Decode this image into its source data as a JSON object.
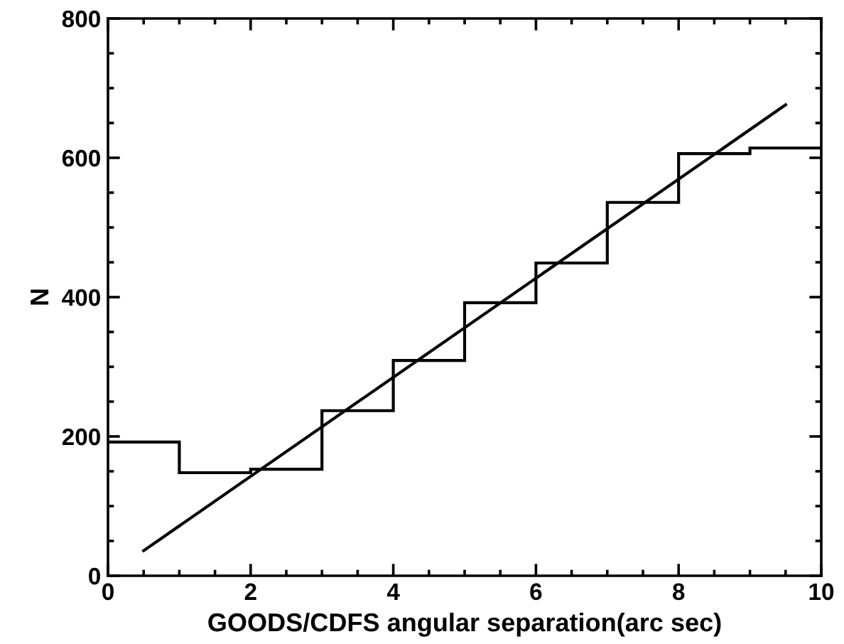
{
  "chart_data": {
    "type": "histogram",
    "xlabel": "GOODS/CDFS angular separation(arc sec)",
    "ylabel": "N",
    "xlim": [
      0,
      10
    ],
    "ylim": [
      0,
      800
    ],
    "xticks": [
      0,
      {
        "value": 0.5,
        "label": null
      },
      {
        "value": 1,
        "label": null
      },
      {
        "value": 1.5,
        "label": null
      },
      2,
      {
        "value": 2.5,
        "label": null
      },
      {
        "value": 3,
        "label": null
      },
      {
        "value": 3.5,
        "label": null
      },
      4,
      {
        "value": 4.5,
        "label": null
      },
      {
        "value": 5,
        "label": null
      },
      {
        "value": 5.5,
        "label": null
      },
      6,
      {
        "value": 6.5,
        "label": null
      },
      {
        "value": 7,
        "label": null
      },
      {
        "value": 7.5,
        "label": null
      },
      8,
      {
        "value": 8.5,
        "label": null
      },
      {
        "value": 9,
        "label": null
      },
      {
        "value": 9.5,
        "label": null
      },
      10
    ],
    "yticks": [
      0,
      {
        "value": 50,
        "label": null
      },
      {
        "value": 100,
        "label": null
      },
      {
        "value": 150,
        "label": null
      },
      200,
      {
        "value": 250,
        "label": null
      },
      {
        "value": 300,
        "label": null
      },
      {
        "value": 350,
        "label": null
      },
      400,
      {
        "value": 450,
        "label": null
      },
      {
        "value": 500,
        "label": null
      },
      {
        "value": 550,
        "label": null
      },
      600,
      {
        "value": 650,
        "label": null
      },
      {
        "value": 700,
        "label": null
      },
      {
        "value": 750,
        "label": null
      },
      800
    ],
    "grid": false,
    "series": [
      {
        "color": "#000000",
        "bins": [
          0,
          1,
          2,
          3,
          4,
          5,
          6,
          7,
          8,
          9,
          10
        ],
        "values": [
          192,
          148,
          153,
          237,
          309,
          392,
          449,
          536,
          606,
          614
        ]
      },
      {
        "type": "line",
        "color": "#000000",
        "x": [
          0.5,
          9.5
        ],
        "values": [
          36,
          676
        ]
      }
    ]
  }
}
